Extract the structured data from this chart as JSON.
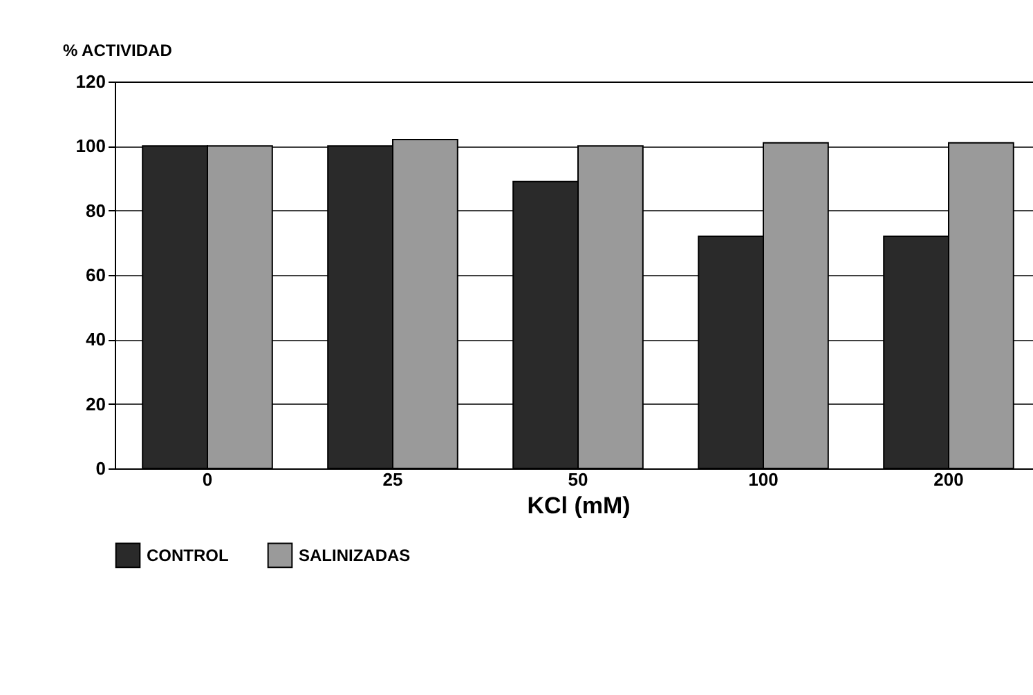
{
  "chart_data": {
    "type": "bar",
    "ylabel": "% ACTIVIDAD",
    "xlabel": "KCl (mM)",
    "categories": [
      "0",
      "25",
      "50",
      "100",
      "200"
    ],
    "series": [
      {
        "name": "CONTROL",
        "color": "#2a2a2a",
        "values": [
          100,
          100,
          89,
          72,
          72
        ]
      },
      {
        "name": "SALINIZADAS",
        "color": "#9a9a9a",
        "values": [
          100,
          102,
          100,
          101,
          101
        ]
      }
    ],
    "ylim": [
      0,
      120
    ],
    "yticks": [
      0,
      20,
      40,
      60,
      80,
      100,
      120
    ],
    "grid": "y",
    "legend": "bottom"
  }
}
